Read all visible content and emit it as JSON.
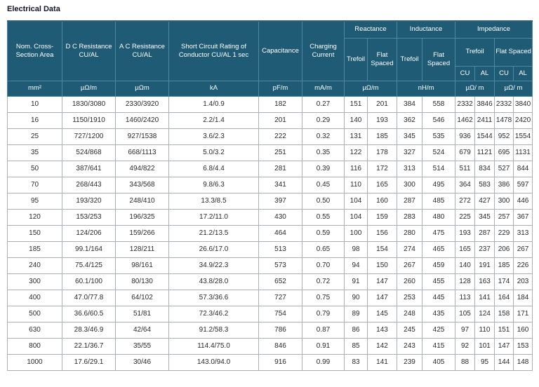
{
  "page": {
    "title": "Electrical Data"
  },
  "colors": {
    "header_bg": "#1f5b75",
    "header_border": "#4e87a3",
    "header_text": "#ffffff",
    "accent_band": "#4a4269",
    "body_border": "#aab0b6",
    "body_text": "#2b2b2b"
  },
  "table": {
    "headers": {
      "nom_cross_section": "Nom. Cross-Section Area",
      "dc_resistance": "D C Resistance CU/AL",
      "ac_resistance": "A C Resistance CU/AL",
      "short_circuit": "Short Circuit Rating of Conductor CU/AL 1 sec",
      "capacitance": "Capacitance",
      "charging_current": "Charging Current",
      "reactance": "Reactance",
      "inductance": "Inductance",
      "impedance": "Impedance",
      "trefoil": "Trefoil",
      "flat_spaced": "Flat Spaced",
      "cu": "CU",
      "al": "AL"
    },
    "units": {
      "area": "mm²",
      "dc": "µΩ/m",
      "ac": "µΩm",
      "short_circuit": "kA",
      "capacitance": "pF/m",
      "charging": "mA/m",
      "reactance": "µΩ/m",
      "inductance": "nH/m",
      "impedance_trefoil": "µΩ/ m",
      "impedance_flat": "µΩ/ m"
    },
    "rows": [
      [
        "10",
        "1830/3080",
        "2330/3920",
        "1.4/0.9",
        "182",
        "0.27",
        "151",
        "201",
        "384",
        "558",
        "2332",
        "3846",
        "2332",
        "3840"
      ],
      [
        "16",
        "1150/1910",
        "1460/2420",
        "2.2/1.4",
        "201",
        "0.29",
        "140",
        "193",
        "362",
        "546",
        "1462",
        "2411",
        "1478",
        "2420"
      ],
      [
        "25",
        "727/1200",
        "927/1538",
        "3.6/2.3",
        "222",
        "0.32",
        "131",
        "185",
        "345",
        "535",
        "936",
        "1544",
        "952",
        "1554"
      ],
      [
        "35",
        "524/868",
        "668/1113",
        "5.0/3.2",
        "251",
        "0.35",
        "122",
        "178",
        "327",
        "524",
        "679",
        "1121",
        "695",
        "1131"
      ],
      [
        "50",
        "387/641",
        "494/822",
        "6.8/4.4",
        "281",
        "0.39",
        "116",
        "172",
        "313",
        "514",
        "511",
        "834",
        "527",
        "844"
      ],
      [
        "70",
        "268/443",
        "343/568",
        "9.8/6.3",
        "341",
        "0.45",
        "110",
        "165",
        "300",
        "495",
        "364",
        "583",
        "386",
        "597"
      ],
      [
        "95",
        "193/320",
        "248/410",
        "13.3/8.5",
        "397",
        "0.50",
        "104",
        "160",
        "287",
        "485",
        "272",
        "427",
        "300",
        "446"
      ],
      [
        "120",
        "153/253",
        "196/325",
        "17.2/11.0",
        "430",
        "0.55",
        "104",
        "159",
        "283",
        "480",
        "225",
        "345",
        "257",
        "367"
      ],
      [
        "150",
        "124/206",
        "159/266",
        "21.2/13.5",
        "464",
        "0.59",
        "100",
        "156",
        "280",
        "475",
        "193",
        "287",
        "229",
        "313"
      ],
      [
        "185",
        "99.1/164",
        "128/211",
        "26.6/17.0",
        "513",
        "0.65",
        "98",
        "154",
        "274",
        "465",
        "165",
        "237",
        "206",
        "267"
      ],
      [
        "240",
        "75.4/125",
        "98/161",
        "34.9/22.3",
        "573",
        "0.70",
        "94",
        "150",
        "267",
        "459",
        "140",
        "191",
        "185",
        "226"
      ],
      [
        "300",
        "60.1/100",
        "80/130",
        "43.8/28.0",
        "652",
        "0.72",
        "91",
        "147",
        "260",
        "455",
        "128",
        "163",
        "174",
        "203"
      ],
      [
        "400",
        "47.0/77.8",
        "64/102",
        "57.3/36.6",
        "727",
        "0.75",
        "90",
        "147",
        "253",
        "445",
        "113",
        "141",
        "164",
        "184"
      ],
      [
        "500",
        "36.6/60.5",
        "51/81",
        "72.3/46.2",
        "754",
        "0.79",
        "89",
        "145",
        "248",
        "435",
        "105",
        "124",
        "158",
        "171"
      ],
      [
        "630",
        "28.3/46.9",
        "42/64",
        "91.2/58.3",
        "786",
        "0.87",
        "86",
        "143",
        "245",
        "425",
        "97",
        "110",
        "151",
        "160"
      ],
      [
        "800",
        "22.1/36.7",
        "35/55",
        "114.4/75.0",
        "846",
        "0.91",
        "85",
        "142",
        "243",
        "415",
        "92",
        "101",
        "147",
        "153"
      ],
      [
        "1000",
        "17.6/29.1",
        "30/46",
        "143.0/94.0",
        "916",
        "0.99",
        "83",
        "141",
        "239",
        "405",
        "88",
        "95",
        "144",
        "148"
      ]
    ]
  }
}
